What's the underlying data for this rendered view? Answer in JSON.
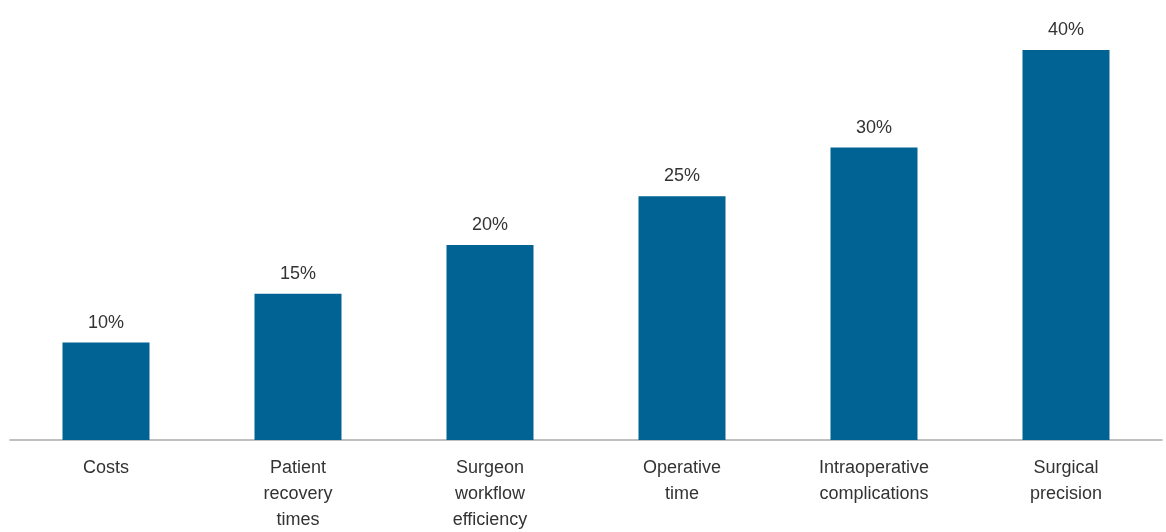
{
  "chart_data": {
    "type": "bar",
    "categories": [
      "Costs",
      "Patient recovery times",
      "Surgeon workflow efficiency",
      "Operative time",
      "Intraoperative complications",
      "Surgical precision"
    ],
    "values": [
      10,
      15,
      20,
      25,
      30,
      40
    ],
    "value_labels": [
      "10%",
      "15%",
      "20%",
      "25%",
      "30%",
      "40%"
    ],
    "color": "#006394"
  }
}
